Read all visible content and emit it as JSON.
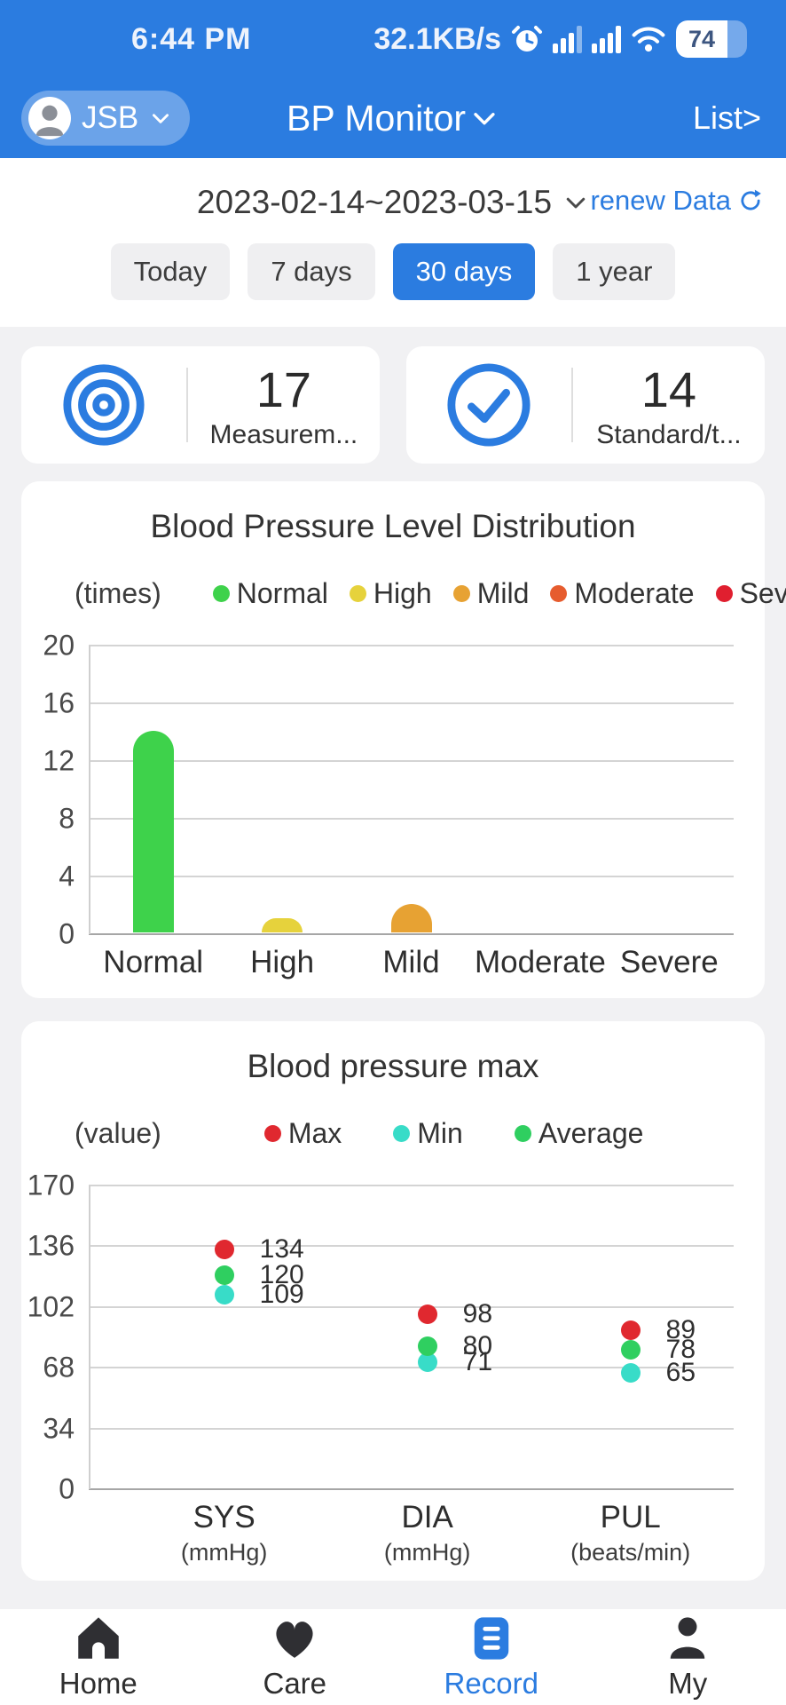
{
  "colors": {
    "primary_blue": "#2b7ce0",
    "page_bg": "#f1f1f3",
    "card_bg": "#ffffff",
    "grid_line": "#d4d4d4"
  },
  "status_bar": {
    "time": "6:44 PM",
    "network_speed": "32.1KB/s",
    "battery_percent": "74"
  },
  "app_header": {
    "user_chip": "JSB",
    "title": "BP Monitor",
    "list_link": "List>"
  },
  "date_bar": {
    "date_range": "2023-02-14~2023-03-15",
    "renew_label": "renew Data"
  },
  "filters": {
    "options": [
      {
        "label": "Today",
        "active": false
      },
      {
        "label": "7 days",
        "active": false
      },
      {
        "label": "30 days",
        "active": true
      },
      {
        "label": "1 year",
        "active": false
      }
    ]
  },
  "stat_cards": [
    {
      "icon": "target-icon",
      "value": "17",
      "label": "Measurem..."
    },
    {
      "icon": "check-circle-icon",
      "value": "14",
      "label": "Standard/t..."
    }
  ],
  "chart_data": [
    {
      "type": "bar",
      "title": "Blood Pressure Level Distribution",
      "unit_label": "(times)",
      "categories": [
        "Normal",
        "High",
        "Mild",
        "Moderate",
        "Severe"
      ],
      "values": [
        14,
        1,
        2,
        0,
        0
      ],
      "colors": [
        "#3ed24b",
        "#e6d23c",
        "#e7a233",
        "#e65c2e",
        "#e01f2f"
      ],
      "ylim": [
        0,
        20
      ],
      "yticks": [
        0,
        4,
        8,
        12,
        16,
        20
      ],
      "legend_position": "top",
      "grid": true
    },
    {
      "type": "scatter",
      "title": "Blood pressure max",
      "unit_label": "(value)",
      "categories": [
        "SYS",
        "DIA",
        "PUL"
      ],
      "category_sublabels": [
        "(mmHg)",
        "(mmHg)",
        "(beats/min)"
      ],
      "series": [
        {
          "name": "Max",
          "color": "#e0282f",
          "values": [
            134,
            98,
            89
          ]
        },
        {
          "name": "Min",
          "color": "#38dcc8",
          "values": [
            109,
            71,
            65
          ]
        },
        {
          "name": "Average",
          "color": "#2fcf60",
          "values": [
            120,
            80,
            78
          ]
        }
      ],
      "ylim": [
        0,
        170
      ],
      "yticks": [
        0,
        34,
        68,
        102,
        136,
        170
      ],
      "legend_position": "top",
      "grid": true
    }
  ],
  "bottom_nav": {
    "items": [
      {
        "icon": "home-icon",
        "label": "Home",
        "active": false
      },
      {
        "icon": "heart-icon",
        "label": "Care",
        "active": false
      },
      {
        "icon": "record-icon",
        "label": "Record",
        "active": true
      },
      {
        "icon": "person-icon",
        "label": "My",
        "active": false
      }
    ]
  }
}
